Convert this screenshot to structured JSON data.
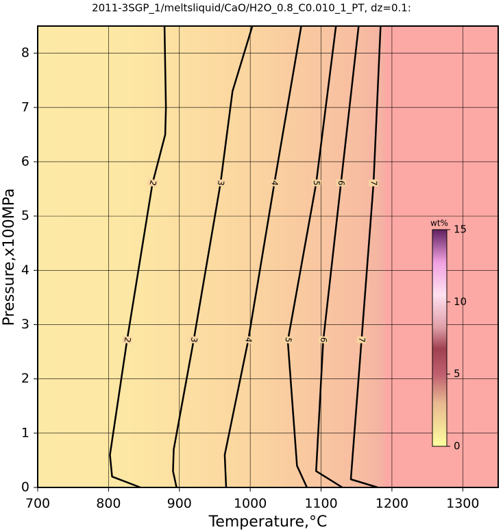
{
  "chart_data": {
    "type": "contour",
    "title": "2011-3SGP_1/meltsliquid/CaO/H2O_0.8_C0.010_1_PT, dz=0.1:",
    "x_label": "Temperature,°C",
    "y_label": "Pressure,x100MPa",
    "xlim": [
      700,
      1350
    ],
    "ylim": [
      0,
      8.5
    ],
    "xticks": [
      700,
      800,
      900,
      1000,
      1100,
      1200,
      1300
    ],
    "yticks": [
      0,
      1,
      2,
      3,
      4,
      5,
      6,
      7,
      8
    ],
    "grid": true,
    "contours": [
      {
        "level": 2,
        "x": [
          845,
          805,
          802,
          826,
          862,
          880,
          881,
          879
        ],
        "y": [
          0,
          0.2,
          0.6,
          2.7,
          5.6,
          6.5,
          7.0,
          8.5
        ]
      },
      {
        "level": 3,
        "x": [
          896,
          891,
          892,
          920,
          958,
          975,
          1003
        ],
        "y": [
          0,
          0.3,
          0.7,
          2.7,
          5.6,
          7.3,
          8.5
        ]
      },
      {
        "level": 4,
        "x": [
          966,
          964,
          997,
          1034,
          1072
        ],
        "y": [
          0,
          0.6,
          2.7,
          5.6,
          8.5
        ]
      },
      {
        "level": 5,
        "x": [
          1080,
          1066,
          1053,
          1093,
          1121
        ],
        "y": [
          0,
          0.4,
          2.7,
          5.6,
          8.5
        ]
      },
      {
        "level": 6,
        "x": [
          1130,
          1093,
          1103,
          1128,
          1153
        ],
        "y": [
          0,
          0.3,
          2.7,
          5.6,
          8.5
        ]
      },
      {
        "level": 7,
        "x": [
          1180,
          1142,
          1157,
          1174,
          1184
        ],
        "y": [
          0,
          0.15,
          2.7,
          5.6,
          8.5
        ]
      }
    ],
    "colorbar": {
      "label": "wt%",
      "lim": [
        0,
        15
      ],
      "ticks": [
        0,
        5,
        10,
        15
      ]
    }
  }
}
